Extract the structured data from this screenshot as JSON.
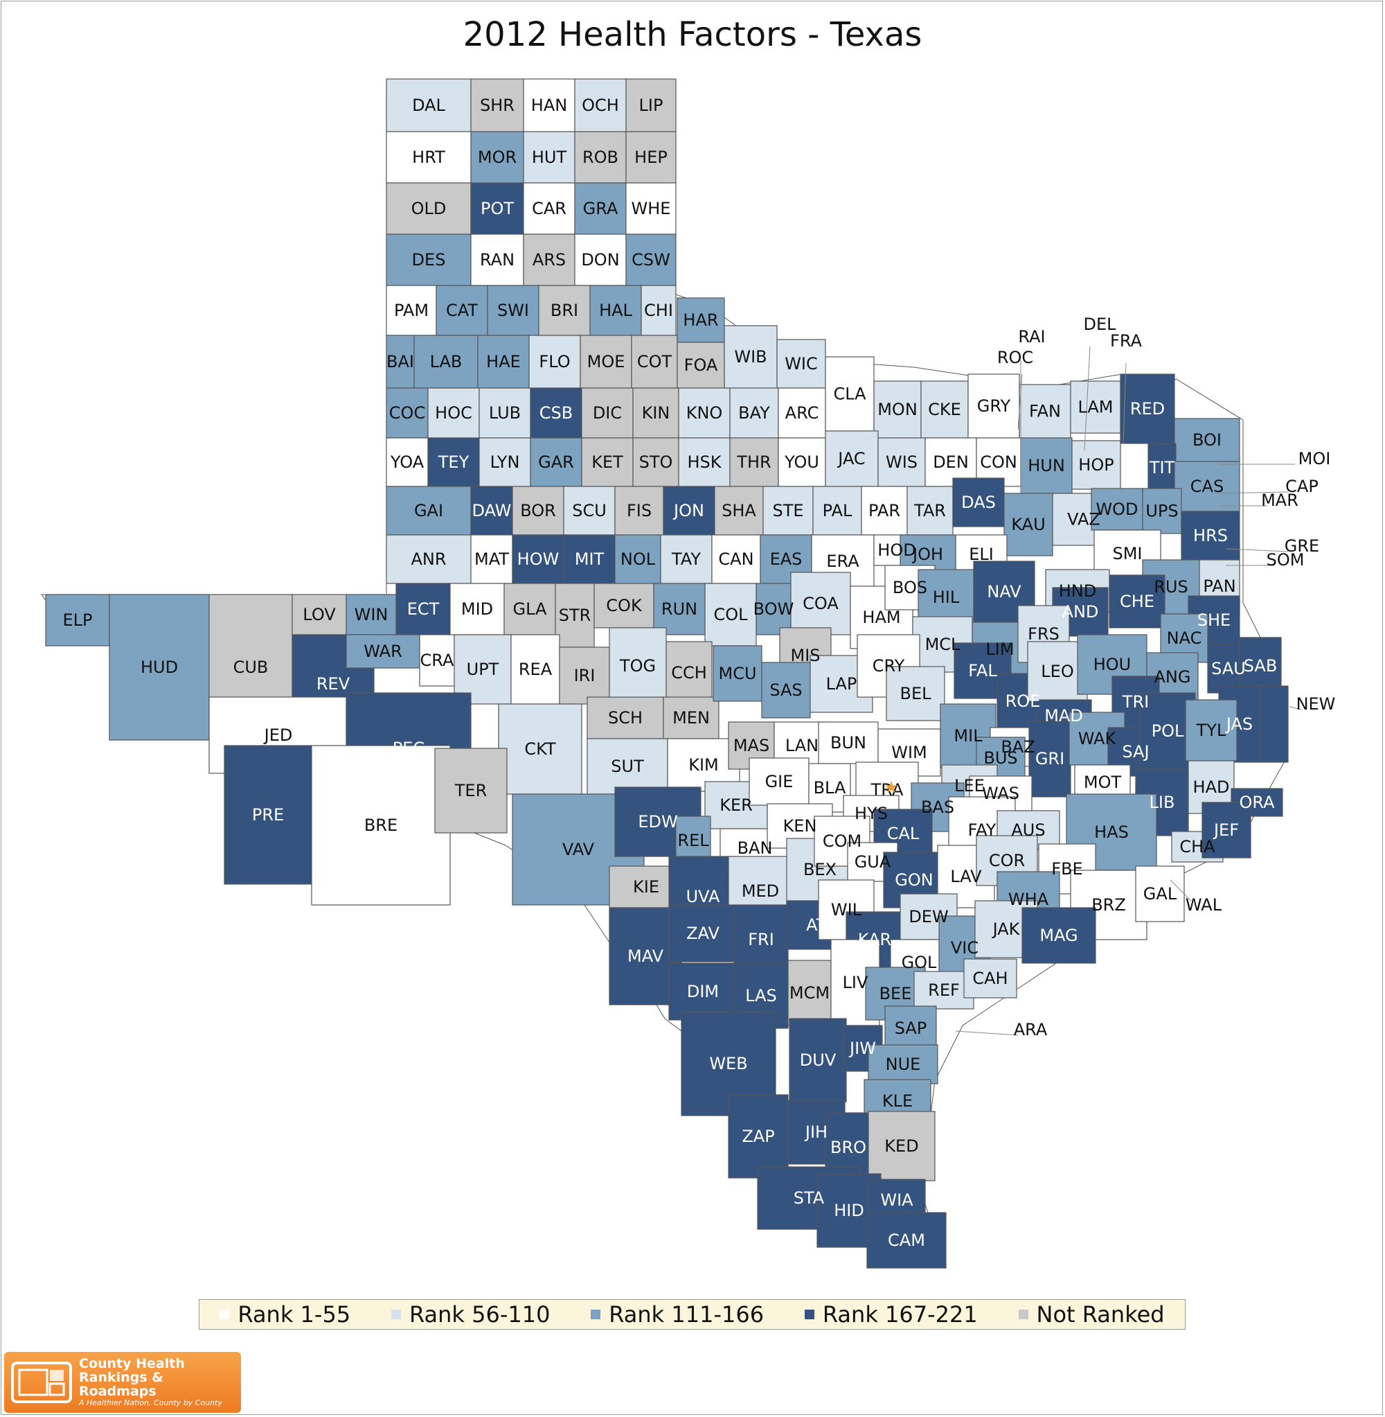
{
  "title": "2012 Health Factors - Texas",
  "colors": {
    "rank_1_55": "#ffffff",
    "rank_56_110": "#d6e3ec",
    "rank_111_166": "#7ea3c0",
    "rank_167_221": "#34537f",
    "not_ranked": "#c9c9c9",
    "border": "#555555",
    "star": "#f0a030"
  },
  "legend": [
    {
      "label": "Rank 1-55",
      "category": "r1"
    },
    {
      "label": "Rank 56-110",
      "category": "r2"
    },
    {
      "label": "Rank 111-166",
      "category": "r3"
    },
    {
      "label": "Rank 167-221",
      "category": "r4"
    },
    {
      "label": "Not Ranked",
      "category": "nr"
    }
  ],
  "logo": {
    "line1": "County Health",
    "line2": "Rankings & Roadmaps",
    "tagline": "A Healthier Nation, County by County"
  },
  "callout_labels": [
    "RAI",
    "DEL",
    "FRA",
    "ROC",
    "MOI",
    "CAP",
    "MAR",
    "GRE",
    "SOM",
    "NEW",
    "ARA",
    "WAL"
  ],
  "counties": {
    "DAL": "r2",
    "SHR": "nr",
    "HAN": "r1",
    "OCH": "r2",
    "LIP": "nr",
    "HRT": "r1",
    "MOR": "r3",
    "HUT": "r2",
    "ROB": "nr",
    "HEP": "nr",
    "OLD": "nr",
    "POT": "r4",
    "CAR": "r1",
    "GRA": "r3",
    "WHE": "r1",
    "DES": "r3",
    "RAN": "r1",
    "ARS": "nr",
    "DON": "r1",
    "CSW": "r3",
    "PAM": "r1",
    "CAT": "r3",
    "SWI": "r3",
    "BRI": "nr",
    "HAL": "r3",
    "CHI": "r2",
    "BAI": "r3",
    "LAB": "r3",
    "HAE": "r3",
    "FLO": "r2",
    "MOE": "nr",
    "COT": "nr",
    "HAR": "r3",
    "FOA": "nr",
    "WIB": "r2",
    "WIC": "r2",
    "COC": "r3",
    "HOC": "r2",
    "LUB": "r2",
    "CSB": "r4",
    "DIC": "nr",
    "KIN": "nr",
    "KNO": "r2",
    "BAY": "r2",
    "ARC": "r1",
    "CLA": "r1",
    "MON": "r2",
    "CKE": "r2",
    "GRY": "r1",
    "FAN": "r2",
    "LAM": "r2",
    "RED": "r4",
    "BOI": "r3",
    "YOA": "r1",
    "TEY": "r4",
    "LYN": "r2",
    "GAR": "r3",
    "KET": "nr",
    "STO": "nr",
    "HSK": "r2",
    "THR": "nr",
    "YOU": "r1",
    "JAC": "r2",
    "WIS": "r2",
    "DEN": "r1",
    "CON": "r1",
    "HUN": "r3",
    "HOP": "r2",
    "TIT": "r4",
    "CAS": "r3",
    "GAI": "r3",
    "DAW": "r4",
    "BOR": "nr",
    "SCU": "r2",
    "FIS": "nr",
    "JON": "r4",
    "SHA": "nr",
    "STE": "r2",
    "PAL": "r2",
    "PAR": "r1",
    "TAR": "r2",
    "DAS": "r4",
    "KAU": "r3",
    "VAZ": "r2",
    "WOD": "r3",
    "UPS": "r3",
    "HRS": "r4",
    "ANR": "r2",
    "MAT": "r1",
    "HOW": "r4",
    "MIT": "r4",
    "NOL": "r3",
    "TAY": "r2",
    "CAN": "r1",
    "EAS": "r3",
    "ERA": "r1",
    "HOD": "r1",
    "JOH": "r3",
    "ELI": "r1",
    "SMI": "r1",
    "HND": "r2",
    "RUS": "r3",
    "PAN": "r2",
    "ELP": "r3",
    "HUD": "r3",
    "CUB": "nr",
    "LOV": "nr",
    "WIN": "r3",
    "ECT": "r4",
    "MID": "r1",
    "GLA": "nr",
    "STR": "nr",
    "COK": "nr",
    "RUN": "r3",
    "COL": "r2",
    "BOW": "r3",
    "COA": "r2",
    "HAM": "r1",
    "BOS": "r1",
    "HIL": "r3",
    "NAV": "r4",
    "AND": "r4",
    "CHE": "r4",
    "SHE": "r4",
    "REV": "r4",
    "WAR": "r3",
    "CRA": "r1",
    "UPT": "r2",
    "REA": "r1",
    "IRI": "nr",
    "TOG": "r2",
    "CCH": "nr",
    "MIS": "nr",
    "MCL": "r2",
    "LIM": "r3",
    "FRS": "r2",
    "NAC": "r3",
    "SAU": "r4",
    "SAB": "r4",
    "JED": "r1",
    "PEC": "r4",
    "CKT": "r2",
    "SCH": "nr",
    "MEN": "nr",
    "MCU": "r3",
    "SAS": "r3",
    "LAP": "r2",
    "CRY": "r1",
    "BEL": "r2",
    "FAL": "r4",
    "ROE": "r4",
    "LEO": "r2",
    "HOU": "r3",
    "ANG": "r3",
    "TRI": "r4",
    "JAS": "r4",
    "NEW_C": "r4",
    "PRE": "r4",
    "BRE": "r1",
    "TER": "nr",
    "SUT": "r2",
    "KIM": "r1",
    "MAS": "nr",
    "LAN": "r1",
    "BUN": "r1",
    "WIM": "r1",
    "MIL": "r3",
    "MAD": "r4",
    "BAZ": "r1",
    "BUS": "r3",
    "GRI": "r4",
    "WAK": "r3",
    "SAJ": "r4",
    "POL": "r4",
    "TYL": "r3",
    "VAV": "r3",
    "EDW": "r4",
    "KER": "r2",
    "GIE": "r1",
    "BLA": "r1",
    "TRA": "r1",
    "LEE": "r2",
    "WAS": "r1",
    "MOT": "r1",
    "LIB": "r4",
    "HAD": "r2",
    "ORA": "r4",
    "REL": "r3",
    "BAN": "r1",
    "KEN": "r1",
    "HYS": "r1",
    "BAS": "r3",
    "CAL": "r4",
    "FAY": "r1",
    "AUS": "r2",
    "HAS": "r3",
    "CHA": "r2",
    "JEF": "r4",
    "KIE": "nr",
    "UVA": "r4",
    "MED": "r2",
    "BEX": "r2",
    "COM": "r1",
    "GUA": "r1",
    "GON": "r4",
    "LAV": "r1",
    "COR": "r2",
    "FBE": "r1",
    "MAV": "r4",
    "ZAV": "r4",
    "FRI": "r4",
    "ATA": "r4",
    "WIL": "r1",
    "KAR": "r4",
    "DEW": "r2",
    "WHA": "r3",
    "BRZ": "r1",
    "GAL": "r1",
    "DIM": "r4",
    "LAS": "r4",
    "MCM": "nr",
    "LIV": "r1",
    "GOL": "r1",
    "VIC": "r3",
    "JAK": "r2",
    "MAG": "r4",
    "BEE": "r3",
    "REF": "r2",
    "CAH": "r2",
    "WEB": "r4",
    "DUV": "r4",
    "JIW": "r4",
    "SAP": "r3",
    "NUE": "r3",
    "KLE": "r3",
    "ZAP": "r4",
    "JIH": "r4",
    "BRO": "r4",
    "KED": "nr",
    "STA": "r4",
    "HID": "r4",
    "WIA": "r4",
    "CAM": "r4"
  },
  "county_labels": {
    "DAL": "DAL",
    "SHR": "SHR",
    "HAN": "HAN",
    "OCH": "OCH",
    "LIP": "LIP",
    "HRT": "HRT",
    "MOR": "MOR",
    "HUT": "HUT",
    "ROB": "ROB",
    "HEP": "HEP",
    "OLD": "OLD",
    "POT": "POT",
    "CAR": "CAR",
    "GRA": "GRA",
    "WHE": "WHE",
    "DES": "DES",
    "RAN": "RAN",
    "ARS": "ARS",
    "DON": "DON",
    "CSW": "CSW",
    "PAM": "PAM",
    "CAT": "CAT",
    "SWI": "SWI",
    "BRI": "BRI",
    "HAL": "HAL",
    "CHI": "CHI",
    "BAI": "BAI",
    "LAB": "LAB",
    "HAE": "HAE",
    "FLO": "FLO",
    "MOE": "MOE",
    "COT": "COT",
    "HAR": "HAR",
    "FOA": "FOA",
    "WIB": "WIB",
    "WIC": "WIC",
    "COC": "COC",
    "HOC": "HOC",
    "LUB": "LUB",
    "CSB": "CSB",
    "DIC": "DIC",
    "KIN": "KIN",
    "KNO": "KNO",
    "BAY": "BAY",
    "ARC": "ARC",
    "CLA": "CLA",
    "MON": "MON",
    "CKE": "CKE",
    "GRY": "GRY",
    "FAN": "FAN",
    "LAM": "LAM",
    "RED": "RED",
    "BOI": "BOI",
    "YOA": "YOA",
    "TEY": "TEY",
    "LYN": "LYN",
    "GAR": "GAR",
    "KET": "KET",
    "STO": "STO",
    "HSK": "HSK",
    "THR": "THR",
    "YOU": "YOU",
    "JAC": "JAC",
    "WIS": "WIS",
    "DEN": "DEN",
    "CON": "CON",
    "HUN": "HUN",
    "HOP": "HOP",
    "TIT": "TIT",
    "CAS": "CAS",
    "GAI": "GAI",
    "DAW": "DAW",
    "BOR": "BOR",
    "SCU": "SCU",
    "FIS": "FIS",
    "JON": "JON",
    "SHA": "SHA",
    "STE": "STE",
    "PAL": "PAL",
    "PAR": "PAR",
    "TAR": "TAR",
    "DAS": "DAS",
    "KAU": "KAU",
    "VAZ": "VAZ",
    "WOD": "WOD",
    "UPS": "UPS",
    "HRS": "HRS",
    "ANR": "ANR",
    "MAT": "MAT",
    "HOW": "HOW",
    "MIT": "MIT",
    "NOL": "NOL",
    "TAY": "TAY",
    "CAN": "CAN",
    "EAS": "EAS",
    "ERA": "ERA",
    "HOD": "HOD",
    "JOH": "JOH",
    "ELI": "ELI",
    "SMI": "SMI",
    "HND": "HND",
    "RUS": "RUS",
    "PAN": "PAN",
    "ELP": "ELP",
    "HUD": "HUD",
    "CUB": "CUB",
    "LOV": "LOV",
    "WIN": "WIN",
    "ECT": "ECT",
    "MID": "MID",
    "GLA": "GLA",
    "STR": "STR",
    "COK": "COK",
    "RUN": "RUN",
    "COL": "COL",
    "BOW": "BOW",
    "COA": "COA",
    "HAM": "HAM",
    "BOS": "BOS",
    "HIL": "HIL",
    "NAV": "NAV",
    "AND": "AND",
    "CHE": "CHE",
    "SHE": "SHE",
    "REV": "REV",
    "WAR": "WAR",
    "CRA": "CRA",
    "UPT": "UPT",
    "REA": "REA",
    "IRI": "IRI",
    "TOG": "TOG",
    "CCH": "CCH",
    "MIS": "MIS",
    "MCL": "MCL",
    "LIM": "LIM",
    "FRS": "FRS",
    "NAC": "NAC",
    "SAU": "SAU",
    "SAB": "SAB",
    "JED": "JED",
    "PEC": "PEC",
    "CKT": "CKT",
    "SCH": "SCH",
    "MEN": "MEN",
    "MCU": "MCU",
    "SAS": "SAS",
    "LAP": "LAP",
    "CRY": "CRY",
    "BEL": "BEL",
    "FAL": "FAL",
    "ROE": "ROE",
    "LEO": "LEO",
    "HOU": "HOU",
    "ANG": "ANG",
    "TRI": "TRI",
    "JAS": "JAS",
    "PRE": "PRE",
    "BRE": "BRE",
    "TER": "TER",
    "SUT": "SUT",
    "KIM": "KIM",
    "MAS": "MAS",
    "LAN": "LAN",
    "BUN": "BUN",
    "WIM": "WIM",
    "MIL": "MIL",
    "MAD": "MAD",
    "BAZ": "BAZ",
    "BUS": "BUS",
    "GRI": "GRI",
    "WAK": "WAK",
    "SAJ": "SAJ",
    "POL": "POL",
    "TYL": "TYL",
    "VAV": "VAV",
    "EDW": "EDW",
    "KER": "KER",
    "GIE": "GIE",
    "BLA": "BLA",
    "TRA": "TRA",
    "LEE": "LEE",
    "WAS": "WAS",
    "MOT": "MOT",
    "LIB": "LIB",
    "HAD": "HAD",
    "ORA": "ORA",
    "REL": "REL",
    "BAN": "BAN",
    "KEN": "KEN",
    "HYS": "HYS",
    "BAS": "BAS",
    "CAL": "CAL",
    "FAY": "FAY",
    "AUS": "AUS",
    "HAS": "HAS",
    "CHA": "CHA",
    "JEF": "JEF",
    "KIE": "KIE",
    "UVA": "UVA",
    "MED": "MED",
    "BEX": "BEX",
    "COM": "COM",
    "GUA": "GUA",
    "GON": "GON",
    "LAV": "LAV",
    "COR": "COR",
    "FBE": "FBE",
    "MAV": "MAV",
    "ZAV": "ZAV",
    "FRI": "FRI",
    "ATA": "ATA",
    "WIL": "WIL",
    "KAR": "KAR",
    "DEW": "DEW",
    "WHA": "WHA",
    "BRZ": "BRZ",
    "GAL": "GAL",
    "DIM": "DIM",
    "LAS": "LAS",
    "MCM": "MCM",
    "LIV": "LIV",
    "GOL": "GOL",
    "VIC": "VIC",
    "JAK": "JAK",
    "MAG": "MAG",
    "BEE": "BEE",
    "REF": "REF",
    "CAH": "CAH",
    "WEB": "WEB",
    "DUV": "DUV",
    "JIW": "JIW",
    "SAP": "SAP",
    "NUE": "NUE",
    "KLE": "KLE",
    "ZAP": "ZAP",
    "JIH": "JIH",
    "BRO": "BRO",
    "KED": "KED",
    "STA": "STA",
    "HID": "HID",
    "WIA": "WIA",
    "CAM": "CAM"
  }
}
